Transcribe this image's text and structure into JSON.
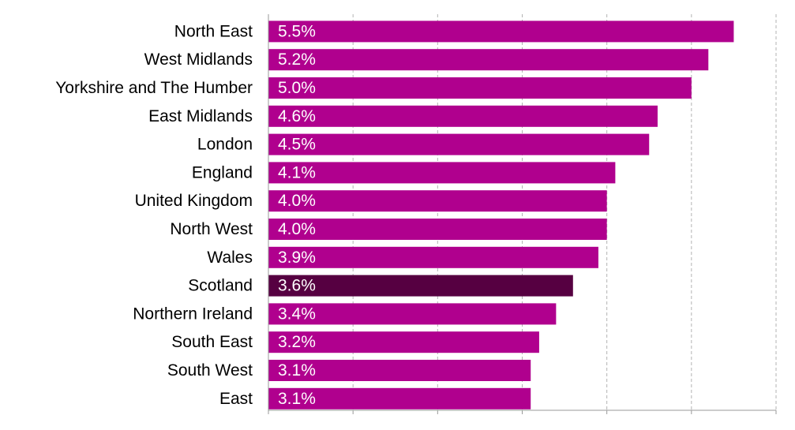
{
  "chart_data": {
    "type": "bar",
    "orientation": "horizontal",
    "categories": [
      "North East",
      "West Midlands",
      "Yorkshire and The Humber",
      "East Midlands",
      "London",
      "England",
      "United Kingdom",
      "North West",
      "Wales",
      "Scotland",
      "Northern Ireland",
      "South East",
      "South West",
      "East"
    ],
    "values": [
      5.5,
      5.2,
      5.0,
      4.6,
      4.5,
      4.1,
      4.0,
      4.0,
      3.9,
      3.6,
      3.4,
      3.2,
      3.1,
      3.1
    ],
    "data_labels": [
      "5.5%",
      "5.2%",
      "5.0%",
      "4.6%",
      "4.5%",
      "4.1%",
      "4.0%",
      "4.0%",
      "3.9%",
      "3.6%",
      "3.4%",
      "3.2%",
      "3.1%",
      "3.1%"
    ],
    "highlight_category": "Scotland",
    "xlim": [
      0,
      6
    ],
    "x_gridlines": [
      1,
      2,
      3,
      4,
      5,
      6
    ],
    "grid": "vertical dashed",
    "legend": "none",
    "colors": {
      "bar": "#b0008e",
      "highlight": "#560041",
      "grid": "#b3b3b3",
      "axis": "#999999",
      "label_text": "#000000",
      "value_text": "#ffffff"
    }
  }
}
